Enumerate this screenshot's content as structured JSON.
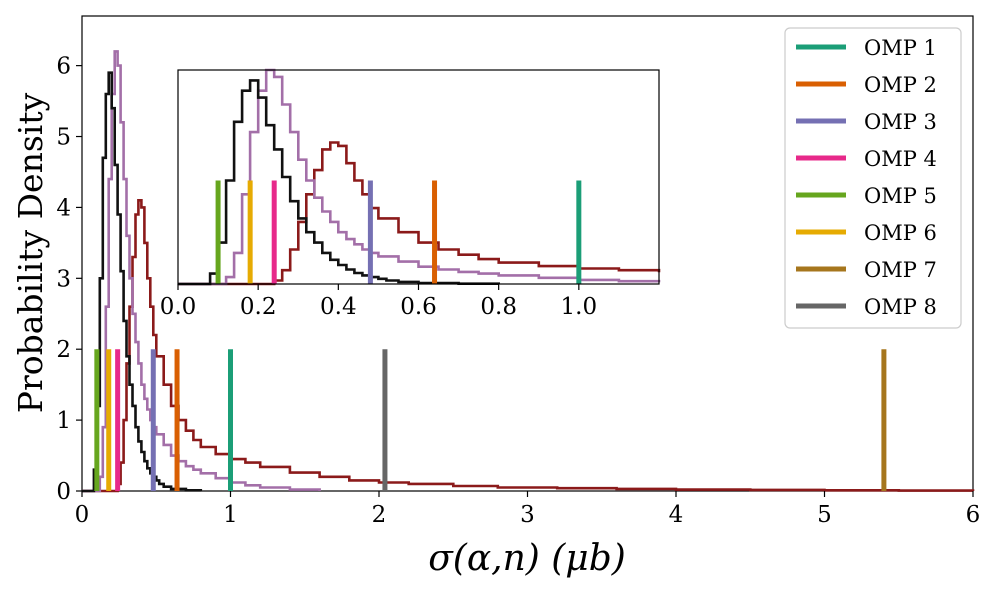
{
  "chart_data": {
    "type": "histogram",
    "xlabel": "σ(α,n) (μb)",
    "ylabel": "Probability Density",
    "main": {
      "xlim": [
        0,
        6
      ],
      "ylim": [
        0,
        6.7
      ],
      "xticks": [
        0,
        1,
        2,
        3,
        4,
        5,
        6
      ],
      "xtick_labels": [
        "0",
        "1",
        "2",
        "3",
        "4",
        "5",
        "6"
      ],
      "yticks": [
        0,
        1,
        2,
        3,
        4,
        5,
        6
      ],
      "ytick_labels": [
        "0",
        "1",
        "2",
        "3",
        "4",
        "5",
        "6"
      ]
    },
    "inset": {
      "xlim": [
        0,
        1.2
      ],
      "ylim": [
        0,
        6.2
      ],
      "xticks": [
        0.0,
        0.2,
        0.4,
        0.6,
        0.8,
        1.0
      ],
      "xtick_labels": [
        "0.0",
        "0.2",
        "0.4",
        "0.6",
        "0.8",
        "1.0"
      ]
    },
    "histograms": [
      {
        "name": "black distribution",
        "color": "#111111",
        "bins": [
          [
            0.0,
            0
          ],
          [
            0.06,
            0
          ],
          [
            0.08,
            0.3
          ],
          [
            0.1,
            1.2
          ],
          [
            0.12,
            3.0
          ],
          [
            0.14,
            4.7
          ],
          [
            0.16,
            5.6
          ],
          [
            0.18,
            5.9
          ],
          [
            0.2,
            5.4
          ],
          [
            0.22,
            4.6
          ],
          [
            0.24,
            3.9
          ],
          [
            0.26,
            3.1
          ],
          [
            0.28,
            2.4
          ],
          [
            0.3,
            1.9
          ],
          [
            0.32,
            1.5
          ],
          [
            0.34,
            1.2
          ],
          [
            0.36,
            0.9
          ],
          [
            0.38,
            0.7
          ],
          [
            0.4,
            0.55
          ],
          [
            0.42,
            0.42
          ],
          [
            0.44,
            0.32
          ],
          [
            0.46,
            0.25
          ],
          [
            0.48,
            0.2
          ],
          [
            0.5,
            0.15
          ],
          [
            0.52,
            0.1
          ],
          [
            0.55,
            0.06
          ],
          [
            0.6,
            0.03
          ],
          [
            0.7,
            0.01
          ],
          [
            0.8,
            0.0
          ]
        ]
      },
      {
        "name": "purple distribution",
        "color": "#a36fa8",
        "bins": [
          [
            0.0,
            0
          ],
          [
            0.1,
            0
          ],
          [
            0.12,
            0.2
          ],
          [
            0.14,
            0.9
          ],
          [
            0.16,
            2.6
          ],
          [
            0.18,
            4.4
          ],
          [
            0.2,
            5.6
          ],
          [
            0.22,
            6.2
          ],
          [
            0.24,
            6.0
          ],
          [
            0.26,
            5.2
          ],
          [
            0.28,
            4.4
          ],
          [
            0.3,
            3.6
          ],
          [
            0.32,
            3.0
          ],
          [
            0.34,
            2.5
          ],
          [
            0.36,
            2.1
          ],
          [
            0.38,
            1.8
          ],
          [
            0.4,
            1.5
          ],
          [
            0.42,
            1.3
          ],
          [
            0.44,
            1.15
          ],
          [
            0.46,
            1.0
          ],
          [
            0.48,
            0.9
          ],
          [
            0.5,
            0.8
          ],
          [
            0.55,
            0.65
          ],
          [
            0.6,
            0.5
          ],
          [
            0.65,
            0.42
          ],
          [
            0.7,
            0.35
          ],
          [
            0.75,
            0.3
          ],
          [
            0.8,
            0.25
          ],
          [
            0.9,
            0.18
          ],
          [
            1.0,
            0.12
          ],
          [
            1.1,
            0.08
          ],
          [
            1.2,
            0.05
          ],
          [
            1.4,
            0.02
          ],
          [
            1.6,
            0.0
          ]
        ]
      },
      {
        "name": "dark red distribution",
        "color": "#8b1a1a",
        "bins": [
          [
            0.0,
            0
          ],
          [
            0.22,
            0
          ],
          [
            0.24,
            0.1
          ],
          [
            0.26,
            0.4
          ],
          [
            0.28,
            1.0
          ],
          [
            0.3,
            1.8
          ],
          [
            0.32,
            2.6
          ],
          [
            0.34,
            3.3
          ],
          [
            0.36,
            3.9
          ],
          [
            0.38,
            4.1
          ],
          [
            0.4,
            4.0
          ],
          [
            0.42,
            3.5
          ],
          [
            0.44,
            3.0
          ],
          [
            0.46,
            2.6
          ],
          [
            0.48,
            2.2
          ],
          [
            0.5,
            1.9
          ],
          [
            0.55,
            1.5
          ],
          [
            0.6,
            1.2
          ],
          [
            0.65,
            1.0
          ],
          [
            0.7,
            0.85
          ],
          [
            0.75,
            0.72
          ],
          [
            0.8,
            0.62
          ],
          [
            0.9,
            0.52
          ],
          [
            1.0,
            0.45
          ],
          [
            1.1,
            0.4
          ],
          [
            1.2,
            0.34
          ],
          [
            1.4,
            0.26
          ],
          [
            1.6,
            0.2
          ],
          [
            1.8,
            0.15
          ],
          [
            2.0,
            0.12
          ],
          [
            2.2,
            0.1
          ],
          [
            2.5,
            0.07
          ],
          [
            2.8,
            0.05
          ],
          [
            3.2,
            0.04
          ],
          [
            3.6,
            0.03
          ],
          [
            4.0,
            0.02
          ],
          [
            4.5,
            0.015
          ],
          [
            5.0,
            0.01
          ],
          [
            5.5,
            0.005
          ],
          [
            6.0,
            0.0
          ]
        ]
      }
    ],
    "series": [
      {
        "name": "OMP 1",
        "color": "#1b9e77",
        "x": 1.0,
        "height": 2.0
      },
      {
        "name": "OMP 2",
        "color": "#d95f02",
        "x": 0.64,
        "height": 2.0
      },
      {
        "name": "OMP 3",
        "color": "#7570b3",
        "x": 0.48,
        "height": 2.0
      },
      {
        "name": "OMP 4",
        "color": "#e7298a",
        "x": 0.24,
        "height": 2.0
      },
      {
        "name": "OMP 5",
        "color": "#66a61e",
        "x": 0.1,
        "height": 2.0
      },
      {
        "name": "OMP 6",
        "color": "#e6ab02",
        "x": 0.18,
        "height": 2.0
      },
      {
        "name": "OMP 7",
        "color": "#a6761d",
        "x": 5.4,
        "height": 2.0
      },
      {
        "name": "OMP 8",
        "color": "#666666",
        "x": 2.04,
        "height": 2.0
      }
    ],
    "legend_position": "top-right"
  }
}
